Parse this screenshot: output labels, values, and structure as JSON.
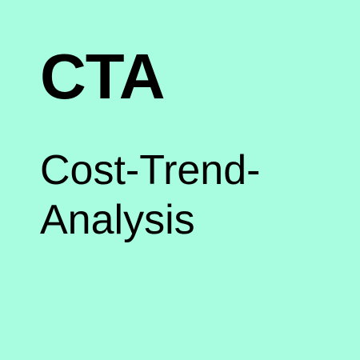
{
  "colors": {
    "background": "#a8fde0",
    "text": "#000000"
  },
  "tile": {
    "acronym": "CTA",
    "subtitle_line1": "Cost-Trend-",
    "subtitle_line2": "Analysis"
  }
}
